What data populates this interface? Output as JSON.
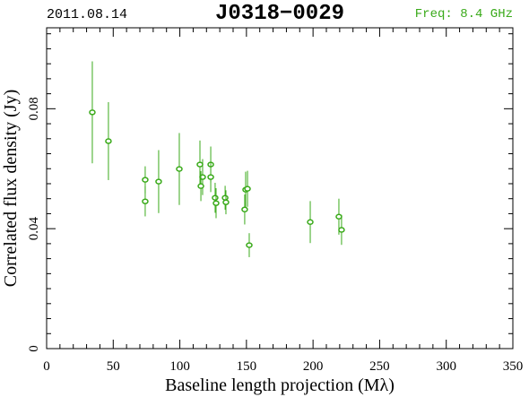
{
  "chart_data": {
    "type": "scatter",
    "title": "J0318−0029",
    "date": "2011.08.14",
    "frequency": "Freq: 8.4 GHz",
    "x_label": "Baseline length projection (Mλ)",
    "y_label": "Correlated flux density (Jy)",
    "color": "#3aaa1a",
    "x": [
      34.3,
      46.4,
      74,
      74,
      84.1,
      99.6,
      115.1,
      117.1,
      115.8,
      123.2,
      123.2,
      126.5,
      127.2,
      134,
      134.6,
      148.7,
      149.4,
      150.8,
      152.1,
      197.9,
      219.4,
      221.4
    ],
    "values": [
      0.0788,
      0.0692,
      0.0563,
      0.0491,
      0.0557,
      0.0599,
      0.0614,
      0.0572,
      0.0542,
      0.0614,
      0.0572,
      0.0503,
      0.0485,
      0.0503,
      0.0488,
      0.0464,
      0.053,
      0.0533,
      0.0345,
      0.0422,
      0.044,
      0.0396
    ],
    "errors": [
      0.017,
      0.013,
      0.0045,
      0.005,
      0.0105,
      0.012,
      0.008,
      0.006,
      0.005,
      0.006,
      0.005,
      0.005,
      0.005,
      0.004,
      0.004,
      0.005,
      0.006,
      0.006,
      0.004,
      0.007,
      0.006,
      0.005
    ],
    "xlim": [
      0,
      350
    ],
    "ylim": [
      0,
      0.107
    ],
    "xticks": [
      0,
      50,
      100,
      150,
      200,
      250,
      300,
      350
    ],
    "yticks": [
      0,
      0.04,
      0.08
    ],
    "xminorticks": [
      10,
      20,
      30,
      40,
      60,
      70,
      80,
      90,
      110,
      120,
      130,
      140,
      160,
      170,
      180,
      190,
      210,
      220,
      230,
      240,
      260,
      270,
      280,
      290,
      310,
      320,
      330,
      340
    ],
    "yminorticks": [
      0.005,
      0.01,
      0.015,
      0.02,
      0.025,
      0.03,
      0.035,
      0.045,
      0.05,
      0.055,
      0.06,
      0.065,
      0.07,
      0.075,
      0.085,
      0.09,
      0.095,
      0.1,
      0.105
    ]
  }
}
